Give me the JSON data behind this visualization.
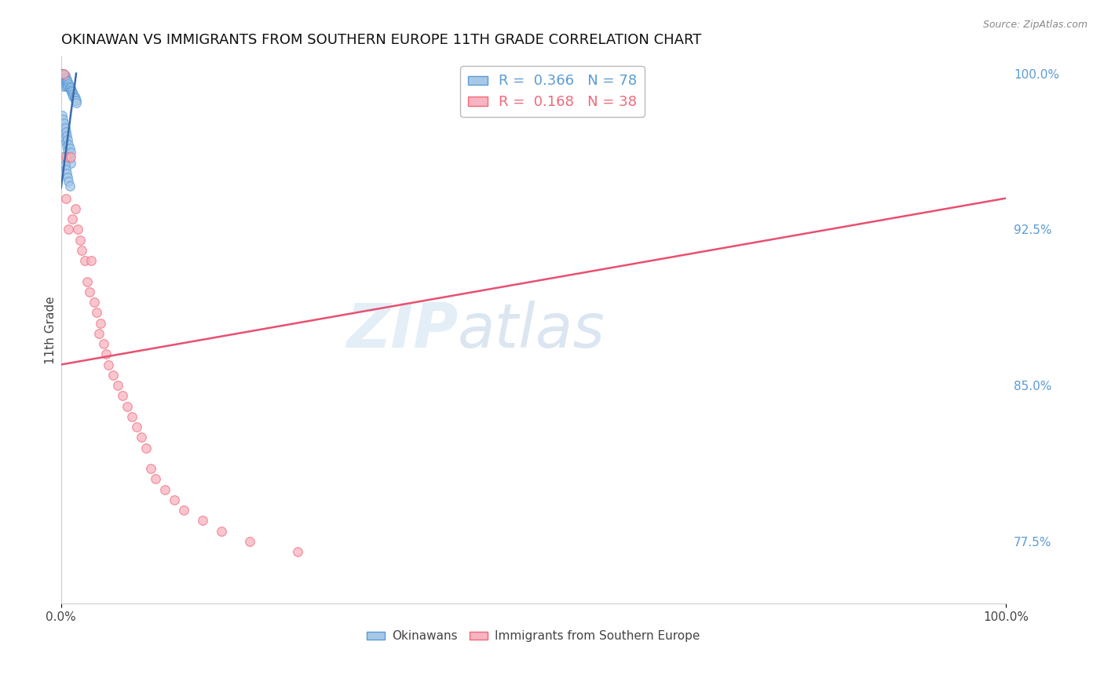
{
  "title": "OKINAWAN VS IMMIGRANTS FROM SOUTHERN EUROPE 11TH GRADE CORRELATION CHART",
  "source_text": "Source: ZipAtlas.com",
  "ylabel": "11th Grade",
  "xlim": [
    0.0,
    1.0
  ],
  "ylim": [
    0.745,
    1.008
  ],
  "yticks": [
    0.775,
    0.85,
    0.925,
    1.0
  ],
  "ytick_labels": [
    "77.5%",
    "85.0%",
    "92.5%",
    "100.0%"
  ],
  "xticks": [
    0.0,
    1.0
  ],
  "xtick_labels": [
    "0.0%",
    "100.0%"
  ],
  "legend_entries": [
    {
      "label": "R =  0.366   N = 78",
      "color": "#5b9bd5"
    },
    {
      "label": "R =  0.168   N = 38",
      "color": "#f0697a"
    }
  ],
  "legend_bottom": [
    "Okinawans",
    "Immigrants from Southern Europe"
  ],
  "blue_scatter_x": [
    0.001,
    0.001,
    0.001,
    0.002,
    0.002,
    0.002,
    0.002,
    0.002,
    0.002,
    0.003,
    0.003,
    0.003,
    0.003,
    0.003,
    0.003,
    0.003,
    0.004,
    0.004,
    0.004,
    0.004,
    0.004,
    0.005,
    0.005,
    0.005,
    0.005,
    0.005,
    0.006,
    0.006,
    0.006,
    0.007,
    0.007,
    0.007,
    0.008,
    0.008,
    0.009,
    0.009,
    0.01,
    0.01,
    0.011,
    0.011,
    0.012,
    0.012,
    0.013,
    0.013,
    0.014,
    0.014,
    0.015,
    0.015,
    0.016,
    0.016,
    0.001,
    0.001,
    0.002,
    0.002,
    0.003,
    0.003,
    0.004,
    0.004,
    0.005,
    0.005,
    0.006,
    0.006,
    0.007,
    0.007,
    0.008,
    0.008,
    0.009,
    0.009,
    0.01,
    0.01,
    0.002,
    0.003,
    0.004,
    0.005,
    0.006,
    0.007,
    0.008,
    0.009
  ],
  "blue_scatter_y": [
    1.0,
    0.999,
    0.998,
    1.0,
    0.999,
    0.998,
    0.997,
    0.996,
    0.995,
    1.0,
    0.999,
    0.998,
    0.997,
    0.996,
    0.995,
    0.994,
    0.999,
    0.998,
    0.997,
    0.996,
    0.995,
    0.998,
    0.997,
    0.996,
    0.995,
    0.994,
    0.997,
    0.996,
    0.995,
    0.996,
    0.995,
    0.994,
    0.995,
    0.994,
    0.994,
    0.993,
    0.993,
    0.992,
    0.992,
    0.991,
    0.991,
    0.99,
    0.99,
    0.989,
    0.989,
    0.988,
    0.988,
    0.987,
    0.987,
    0.986,
    0.98,
    0.975,
    0.978,
    0.973,
    0.976,
    0.971,
    0.974,
    0.969,
    0.972,
    0.967,
    0.97,
    0.965,
    0.968,
    0.963,
    0.966,
    0.961,
    0.964,
    0.959,
    0.962,
    0.957,
    0.96,
    0.958,
    0.956,
    0.954,
    0.952,
    0.95,
    0.948,
    0.946
  ],
  "pink_scatter_x": [
    0.003,
    0.005,
    0.005,
    0.008,
    0.01,
    0.012,
    0.015,
    0.018,
    0.02,
    0.022,
    0.025,
    0.028,
    0.03,
    0.032,
    0.035,
    0.038,
    0.04,
    0.042,
    0.045,
    0.048,
    0.05,
    0.055,
    0.06,
    0.065,
    0.07,
    0.075,
    0.08,
    0.085,
    0.09,
    0.095,
    0.1,
    0.11,
    0.12,
    0.13,
    0.15,
    0.17,
    0.2,
    0.25
  ],
  "pink_scatter_y": [
    1.0,
    0.96,
    0.94,
    0.925,
    0.96,
    0.93,
    0.935,
    0.925,
    0.92,
    0.915,
    0.91,
    0.9,
    0.895,
    0.91,
    0.89,
    0.885,
    0.875,
    0.88,
    0.87,
    0.865,
    0.86,
    0.855,
    0.85,
    0.845,
    0.84,
    0.835,
    0.83,
    0.825,
    0.82,
    0.81,
    0.805,
    0.8,
    0.795,
    0.79,
    0.785,
    0.78,
    0.775,
    0.77
  ],
  "blue_line_x": [
    0.0,
    0.016
  ],
  "blue_line_y": [
    0.945,
    1.0
  ],
  "pink_line_x": [
    0.0,
    1.0
  ],
  "pink_line_y": [
    0.86,
    0.94
  ],
  "watermark_zip": "ZIP",
  "watermark_atlas": "atlas",
  "background_color": "#ffffff",
  "dot_size": 70,
  "blue_dot_color": "#a8c8e8",
  "pink_dot_color": "#f8b4c0",
  "blue_dot_edge": "#5b9bd5",
  "pink_dot_edge": "#f0697a",
  "blue_line_color": "#3a6baa",
  "pink_line_color": "#e85070",
  "grid_color": "#c8c8c8",
  "title_fontsize": 13,
  "axis_label_fontsize": 11,
  "tick_fontsize": 11,
  "right_tick_color": "#5b9bd5"
}
